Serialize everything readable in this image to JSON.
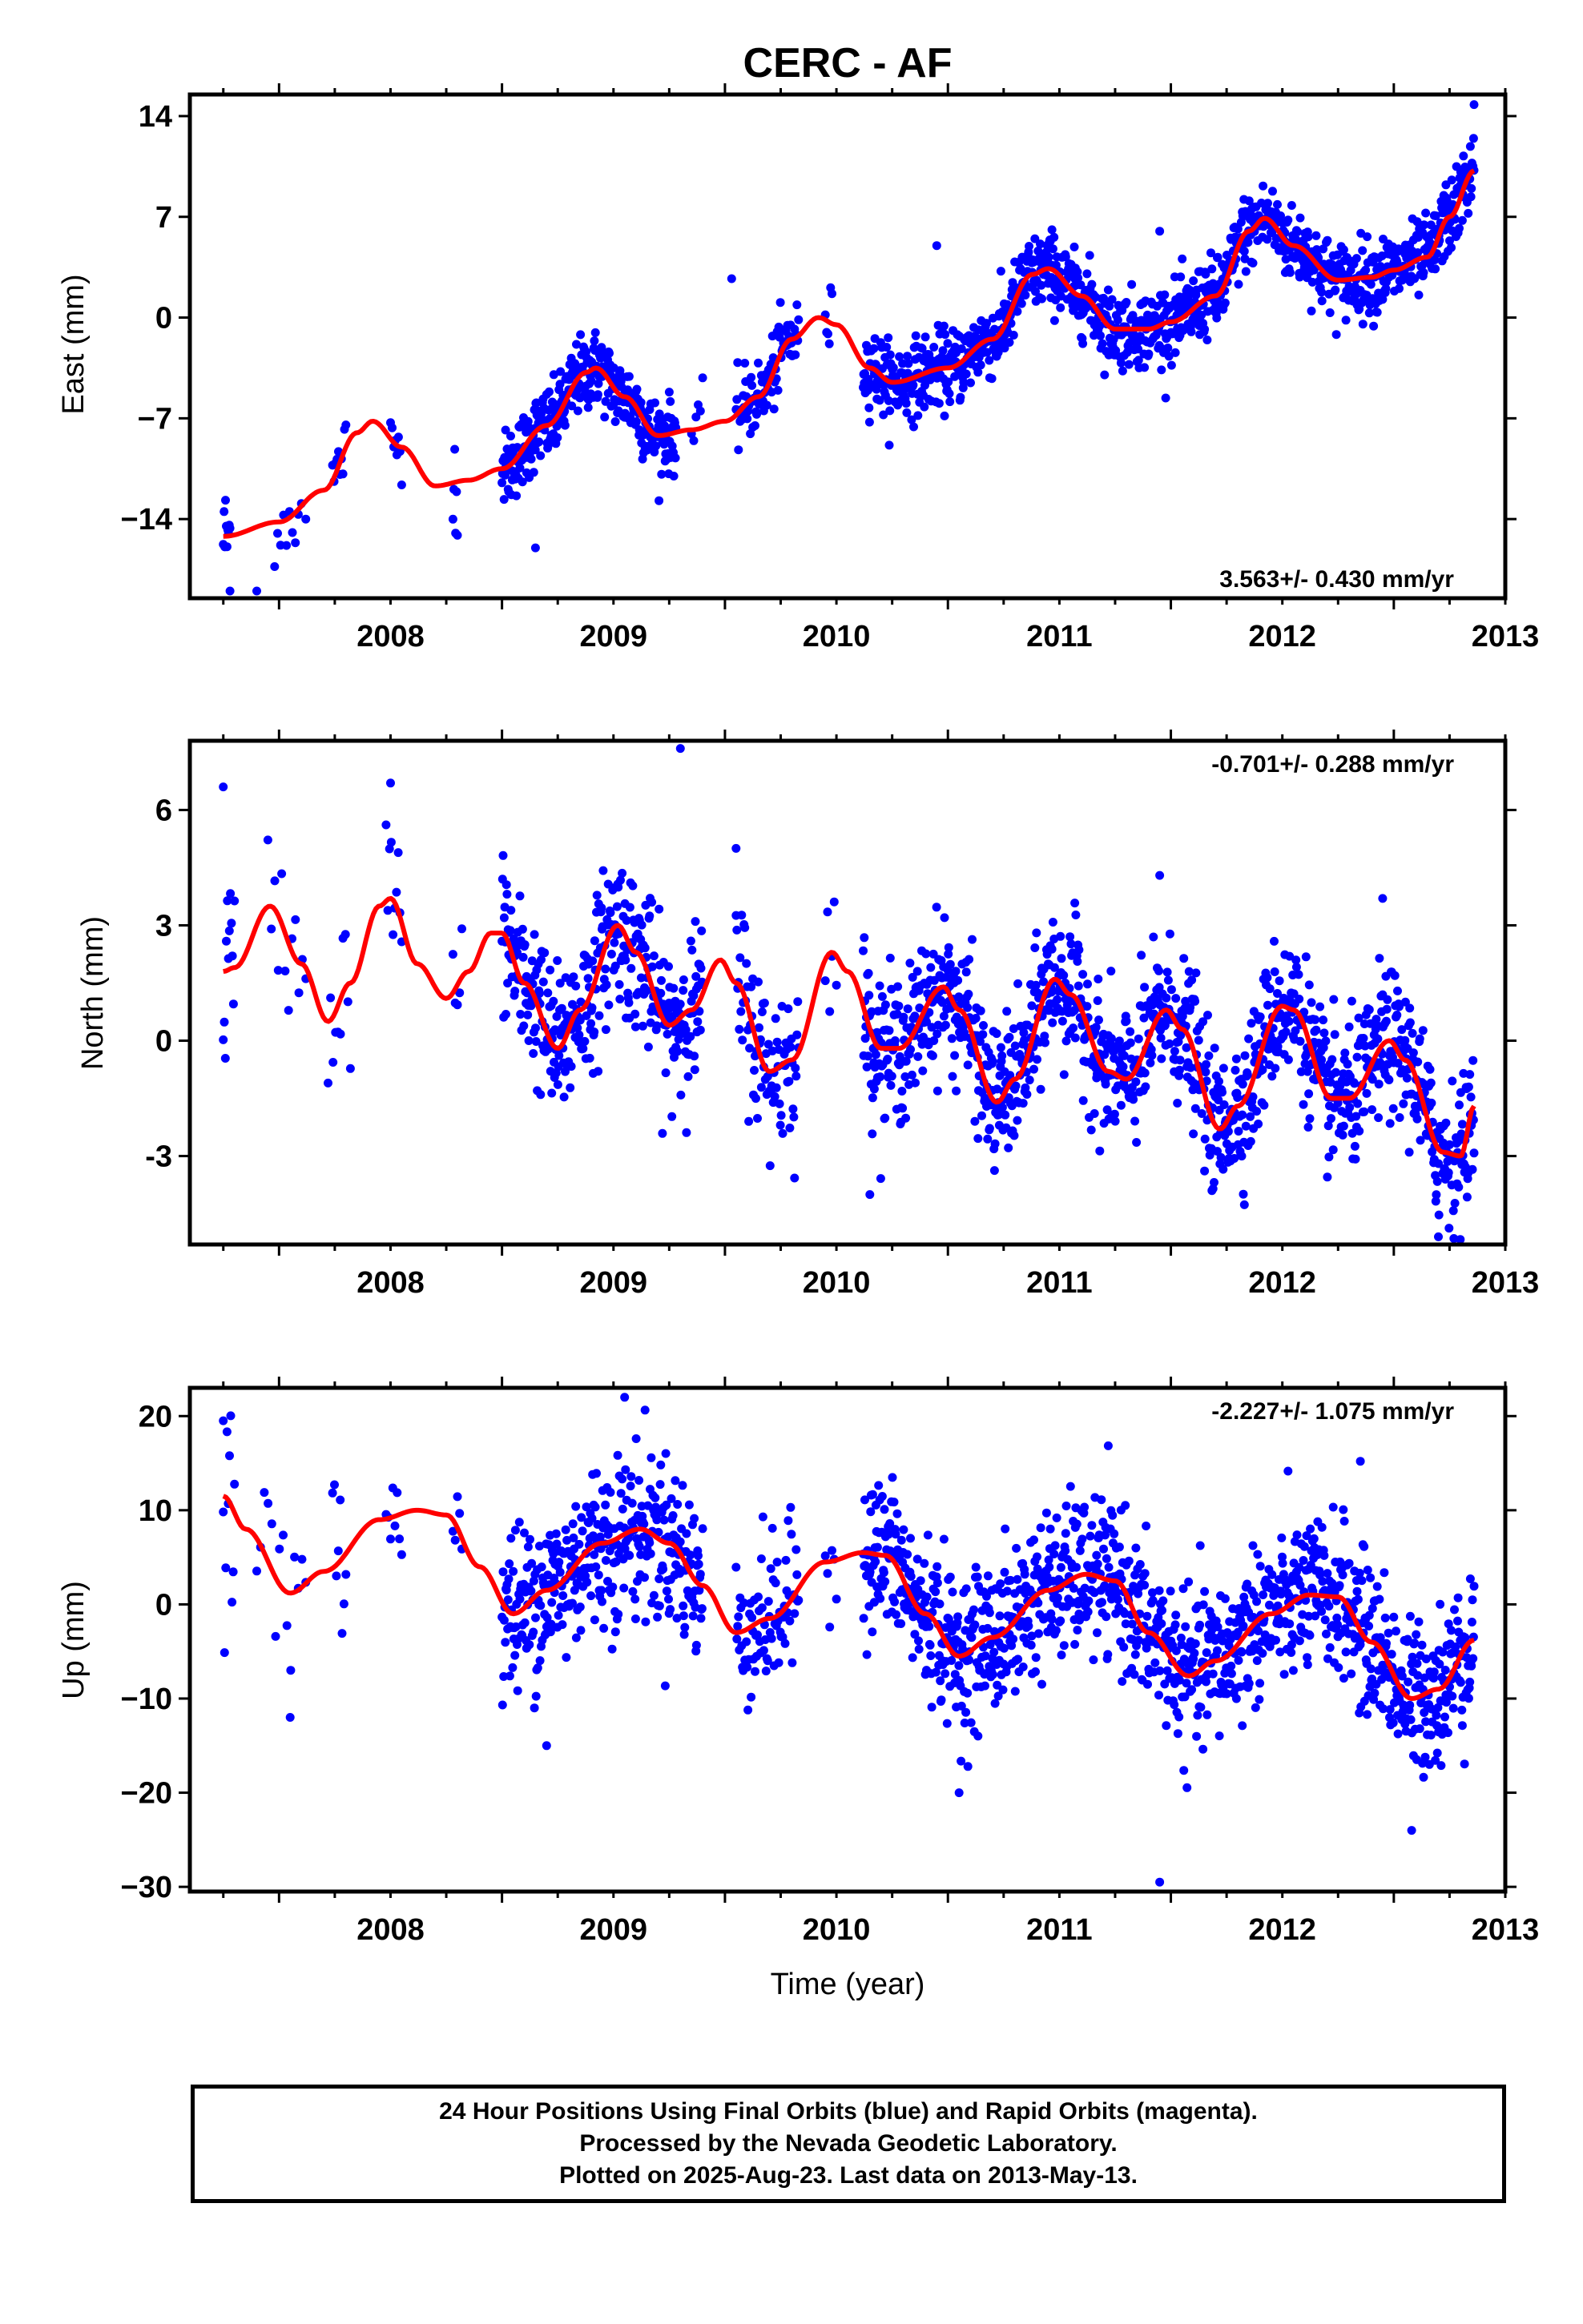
{
  "figure": {
    "title": "CERC - AF",
    "xlabel": "Time (year)",
    "footer": [
      "24 Hour Positions Using Final Orbits (blue) and Rapid Orbits (magenta).",
      "Processed by the Nevada Geodetic Laboratory.",
      "Plotted on 2025-Aug-23. Last data on 2013-May-13."
    ],
    "colors": {
      "observations": "#0000ff",
      "model": "#ff0000",
      "axes": "#000000"
    }
  },
  "chart_data": [
    {
      "type": "scatter",
      "ylabel": "East (mm)",
      "rate_label": "3.563+/- 0.430 mm/yr",
      "rate_position": "bottom-right",
      "xlim": [
        2007.6,
        2013.5
      ],
      "ylim": [
        -19.5,
        15.5
      ],
      "yticks": [
        14,
        7,
        0,
        -7,
        -14
      ],
      "ytick_labels": [
        "14",
        "7",
        "0",
        "−7",
        "−14"
      ],
      "xticks": [
        2008,
        2009,
        2010,
        2011,
        2012,
        2013
      ],
      "xtick_labels": [
        "2008",
        "2009",
        "2010",
        "2011",
        "2012",
        "2013"
      ],
      "model": {
        "x": [
          2007.75,
          2008.0,
          2008.2,
          2008.35,
          2008.42,
          2008.55,
          2008.7,
          2008.85,
          2009.0,
          2009.2,
          2009.38,
          2009.42,
          2009.55,
          2009.7,
          2009.85,
          2010.0,
          2010.15,
          2010.3,
          2010.42,
          2010.5,
          2010.65,
          2010.75,
          2011.0,
          2011.2,
          2011.38,
          2011.45,
          2011.6,
          2011.75,
          2011.9,
          2012.0,
          2012.2,
          2012.35,
          2012.42,
          2012.55,
          2012.75,
          2012.9,
          2013.0,
          2013.15,
          2013.25,
          2013.36
        ],
        "y": [
          -15.2,
          -14.2,
          -12.0,
          -8.0,
          -7.2,
          -9.0,
          -11.7,
          -11.3,
          -10.5,
          -7.5,
          -3.8,
          -3.5,
          -5.5,
          -8.2,
          -7.8,
          -7.2,
          -5.5,
          -1.5,
          0.0,
          -0.5,
          -3.5,
          -4.5,
          -3.5,
          -1.5,
          3.0,
          3.4,
          1.5,
          -0.8,
          -0.8,
          -0.3,
          1.5,
          6.0,
          6.9,
          5.0,
          2.6,
          2.8,
          3.3,
          4.2,
          7.0,
          10.2
        ]
      },
      "observation_segments": [
        {
          "x0": 2007.75,
          "x1": 2007.78,
          "n": 10,
          "sd": 1.8
        },
        {
          "x0": 2007.98,
          "x1": 2008.1,
          "n": 10,
          "sd": 1.5
        },
        {
          "x0": 2008.24,
          "x1": 2008.3,
          "n": 10,
          "sd": 1.2
        },
        {
          "x0": 2008.5,
          "x1": 2008.55,
          "n": 8,
          "sd": 1.0
        },
        {
          "x0": 2008.78,
          "x1": 2008.8,
          "n": 6,
          "sd": 2.0
        },
        {
          "x0": 2009.0,
          "x1": 2009.78,
          "n": 340,
          "sd": 1.3
        },
        {
          "x0": 2009.85,
          "x1": 2009.9,
          "n": 6,
          "sd": 1.5
        },
        {
          "x0": 2010.05,
          "x1": 2010.33,
          "n": 80,
          "sd": 1.3
        },
        {
          "x0": 2010.45,
          "x1": 2010.48,
          "n": 6,
          "sd": 1.2
        },
        {
          "x0": 2010.62,
          "x1": 2013.36,
          "n": 1150,
          "sd": 1.3
        }
      ],
      "outliers": [
        [
          2007.78,
          -19.0
        ],
        [
          2007.9,
          -19.0
        ],
        [
          2008.12,
          -14.0
        ],
        [
          2009.15,
          -16.0
        ],
        [
          2010.03,
          2.7
        ],
        [
          2010.95,
          5.0
        ],
        [
          2011.95,
          6.0
        ],
        [
          2013.36,
          14.8
        ]
      ]
    },
    {
      "type": "scatter",
      "ylabel": "North (mm)",
      "rate_label": "-0.701+/- 0.288 mm/yr",
      "rate_position": "top-right",
      "xlim": [
        2007.6,
        2013.5
      ],
      "ylim": [
        -5.3,
        7.8
      ],
      "yticks": [
        6,
        3,
        0,
        -3
      ],
      "ytick_labels": [
        "6",
        "3",
        "0",
        "-3"
      ],
      "xticks": [
        2008,
        2009,
        2010,
        2011,
        2012,
        2013
      ],
      "xtick_labels": [
        "2008",
        "2009",
        "2010",
        "2011",
        "2012",
        "2013"
      ],
      "model": {
        "x": [
          2007.75,
          2007.8,
          2007.96,
          2008.1,
          2008.22,
          2008.32,
          2008.45,
          2008.5,
          2008.62,
          2008.75,
          2008.85,
          2008.95,
          2009.0,
          2009.1,
          2009.25,
          2009.35,
          2009.52,
          2009.6,
          2009.75,
          2009.85,
          2009.98,
          2010.05,
          2010.2,
          2010.3,
          2010.48,
          2010.55,
          2010.7,
          2010.78,
          2010.98,
          2011.05,
          2011.22,
          2011.3,
          2011.48,
          2011.55,
          2011.72,
          2011.8,
          2011.98,
          2012.05,
          2012.22,
          2012.3,
          2012.5,
          2012.55,
          2012.72,
          2012.8,
          2012.98,
          2013.05,
          2013.22,
          2013.3,
          2013.36
        ],
        "y": [
          1.8,
          1.9,
          3.5,
          2.0,
          0.5,
          1.5,
          3.5,
          3.7,
          2.0,
          1.1,
          1.8,
          2.8,
          2.8,
          1.5,
          -0.2,
          0.8,
          3.0,
          2.3,
          0.4,
          0.8,
          2.1,
          1.5,
          -0.8,
          -0.5,
          2.3,
          1.8,
          -0.2,
          -0.2,
          1.4,
          0.8,
          -1.6,
          -1.0,
          1.6,
          1.2,
          -0.8,
          -1.0,
          0.8,
          0.3,
          -2.3,
          -1.7,
          0.9,
          0.8,
          -1.5,
          -1.5,
          0.0,
          -0.5,
          -2.9,
          -3.0,
          -1.7
        ]
      },
      "observation_segments": [
        {
          "x0": 2007.75,
          "x1": 2007.8,
          "n": 12,
          "sd": 1.4
        },
        {
          "x0": 2007.95,
          "x1": 2008.12,
          "n": 12,
          "sd": 0.9
        },
        {
          "x0": 2008.22,
          "x1": 2008.32,
          "n": 10,
          "sd": 1.0
        },
        {
          "x0": 2008.48,
          "x1": 2008.55,
          "n": 10,
          "sd": 1.5
        },
        {
          "x0": 2008.78,
          "x1": 2008.82,
          "n": 5,
          "sd": 1.2
        },
        {
          "x0": 2009.0,
          "x1": 2009.9,
          "n": 360,
          "sd": 1.0
        },
        {
          "x0": 2010.05,
          "x1": 2010.33,
          "n": 80,
          "sd": 1.1
        },
        {
          "x0": 2010.45,
          "x1": 2010.5,
          "n": 6,
          "sd": 1.0
        },
        {
          "x0": 2010.62,
          "x1": 2013.36,
          "n": 1150,
          "sd": 0.9
        }
      ],
      "outliers": [
        [
          2007.75,
          6.6
        ],
        [
          2008.5,
          6.7
        ],
        [
          2009.8,
          7.6
        ],
        [
          2010.05,
          5.0
        ],
        [
          2010.65,
          -4.0
        ],
        [
          2011.95,
          4.3
        ],
        [
          2012.95,
          3.7
        ],
        [
          2013.2,
          -5.1
        ]
      ]
    },
    {
      "type": "scatter",
      "ylabel": "Up (mm)",
      "rate_label": "-2.227+/- 1.075 mm/yr",
      "rate_position": "top-right",
      "xlim": [
        2007.6,
        2013.5
      ],
      "ylim": [
        -30.5,
        23.0
      ],
      "yticks": [
        20,
        10,
        0,
        -10,
        -20,
        -30
      ],
      "ytick_labels": [
        "20",
        "10",
        "0",
        "−10",
        "−20",
        "−30"
      ],
      "xticks": [
        2008,
        2009,
        2010,
        2011,
        2012,
        2013
      ],
      "xtick_labels": [
        "2008",
        "2009",
        "2010",
        "2011",
        "2012",
        "2013"
      ],
      "model": {
        "x": [
          2007.75,
          2007.85,
          2008.05,
          2008.2,
          2008.45,
          2008.62,
          2008.75,
          2008.9,
          2009.05,
          2009.2,
          2009.45,
          2009.62,
          2009.75,
          2009.9,
          2010.05,
          2010.2,
          2010.45,
          2010.62,
          2010.72,
          2010.9,
          2011.05,
          2011.2,
          2011.45,
          2011.62,
          2011.75,
          2011.9,
          2012.08,
          2012.2,
          2012.45,
          2012.62,
          2012.75,
          2012.9,
          2013.08,
          2013.2,
          2013.36
        ],
        "y": [
          11.5,
          8.0,
          1.2,
          3.5,
          9.0,
          10.0,
          9.5,
          4.0,
          -1.0,
          1.5,
          6.5,
          8.0,
          6.5,
          2.0,
          -3.0,
          -1.5,
          4.5,
          5.5,
          5.2,
          -1.0,
          -5.5,
          -3.5,
          1.5,
          3.2,
          2.5,
          -3.0,
          -7.6,
          -6.0,
          -1.0,
          1.0,
          0.8,
          -4.0,
          -10.0,
          -9.0,
          -3.8
        ]
      },
      "observation_segments": [
        {
          "x0": 2007.75,
          "x1": 2007.8,
          "n": 10,
          "sd": 5.0
        },
        {
          "x0": 2007.9,
          "x1": 2008.12,
          "n": 14,
          "sd": 5.0
        },
        {
          "x0": 2008.24,
          "x1": 2008.3,
          "n": 8,
          "sd": 5.0
        },
        {
          "x0": 2008.48,
          "x1": 2008.55,
          "n": 8,
          "sd": 3.0
        },
        {
          "x0": 2008.78,
          "x1": 2008.82,
          "n": 5,
          "sd": 3.0
        },
        {
          "x0": 2009.0,
          "x1": 2009.9,
          "n": 360,
          "sd": 4.5
        },
        {
          "x0": 2010.05,
          "x1": 2010.33,
          "n": 80,
          "sd": 4.0
        },
        {
          "x0": 2010.45,
          "x1": 2010.5,
          "n": 6,
          "sd": 3.0
        },
        {
          "x0": 2010.62,
          "x1": 2013.36,
          "n": 1150,
          "sd": 4.0
        }
      ],
      "outliers": [
        [
          2007.75,
          19.5
        ],
        [
          2008.05,
          -12.0
        ],
        [
          2009.2,
          -15.0
        ],
        [
          2009.55,
          22.0
        ],
        [
          2011.05,
          -20.0
        ],
        [
          2011.95,
          -29.5
        ],
        [
          2013.08,
          -24.0
        ],
        [
          2012.85,
          15.2
        ]
      ]
    }
  ]
}
